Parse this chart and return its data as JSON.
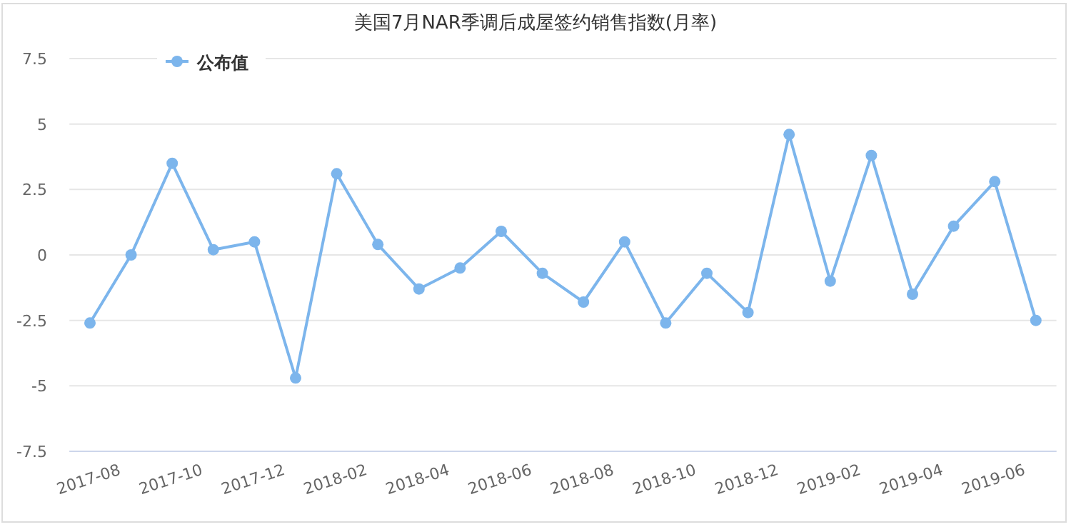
{
  "chart_data": {
    "type": "line",
    "title": "美国7月NAR季调后成屋签约销售指数(月率)",
    "categories": [
      "2017-08",
      null,
      "2017-10",
      null,
      "2017-12",
      null,
      "2018-02",
      null,
      "2018-04",
      null,
      "2018-06",
      null,
      "2018-08",
      null,
      "2018-10",
      null,
      "2018-12",
      null,
      "2019-02",
      null,
      "2019-04",
      null,
      "2019-06",
      null
    ],
    "series": [
      {
        "name": "公布值",
        "color": "#7cb5ec",
        "values": [
          -2.6,
          0,
          3.5,
          0.2,
          0.5,
          -4.7,
          3.1,
          0.4,
          -1.3,
          -0.5,
          0.9,
          -0.7,
          -1.8,
          0.5,
          -2.6,
          -0.7,
          -2.2,
          4.6,
          -1.0,
          3.8,
          -1.5,
          1.1,
          2.8,
          -2.5
        ]
      }
    ],
    "ylim": [
      -7.5,
      7.5
    ],
    "yticks": [
      -7.5,
      -5,
      -2.5,
      0,
      2.5,
      5,
      7.5
    ],
    "grid": "y",
    "legend": "top left",
    "marker": "circle"
  }
}
